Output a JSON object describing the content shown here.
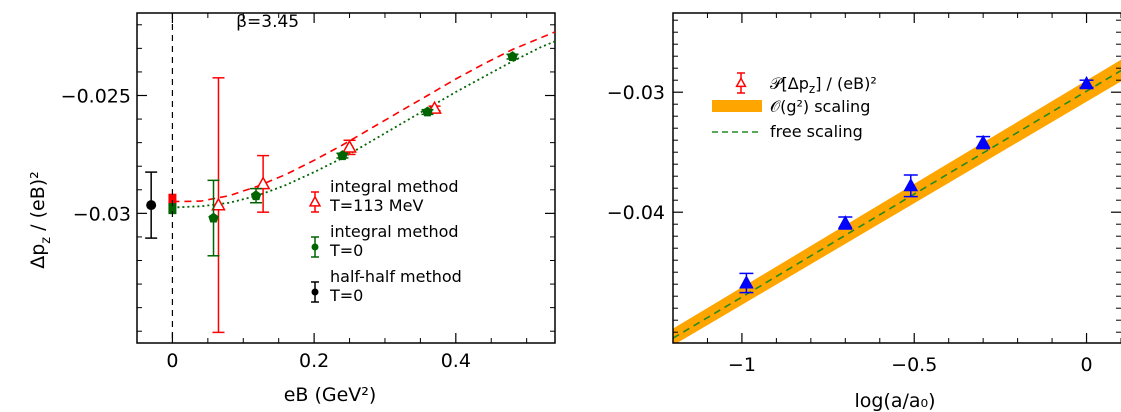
{
  "chart_data": [
    {
      "type": "scatter",
      "xlabel": "eB (GeV²)",
      "ylabel": "Δp_z / (eB)²",
      "xlim": [
        -0.05,
        0.54
      ],
      "ylim": [
        -0.0355,
        -0.0215
      ],
      "x_ticks": [
        0,
        0.2,
        0.4
      ],
      "x_tick_labels": [
        "0",
        "0.2",
        "0.4"
      ],
      "y_ticks": [
        -0.025,
        -0.03
      ],
      "y_tick_labels": [
        "−0.025",
        "−0.03"
      ],
      "annotation": "β=3.45",
      "annotation_x": 0.09,
      "annotation_y": -0.0221,
      "vline_x": 0,
      "series": [
        {
          "name": "integral method T=113 MeV",
          "legend_lines": [
            "integral method",
            "T=113 MeV"
          ],
          "color": "#ff0000",
          "marker": "triangle-open",
          "points": [
            {
              "x": 0.065,
              "y": -0.02965,
              "err": 0.0054
            },
            {
              "x": 0.128,
              "y": -0.02875,
              "err": 0.0012
            },
            {
              "x": 0.25,
              "y": -0.0272,
              "err": 0.0003
            },
            {
              "x": 0.37,
              "y": -0.02555,
              "err": 0.0001
            }
          ],
          "fit_curve": [
            [
              0,
              -0.0295
            ],
            [
              0.04,
              -0.02948
            ],
            [
              0.08,
              -0.02925
            ],
            [
              0.12,
              -0.02885
            ],
            [
              0.16,
              -0.02835
            ],
            [
              0.2,
              -0.02775
            ],
            [
              0.24,
              -0.0271
            ],
            [
              0.28,
              -0.0264
            ],
            [
              0.32,
              -0.0257
            ],
            [
              0.36,
              -0.025
            ],
            [
              0.4,
              -0.0243
            ],
            [
              0.44,
              -0.02365
            ],
            [
              0.48,
              -0.02305
            ],
            [
              0.52,
              -0.02255
            ],
            [
              0.54,
              -0.0223
            ]
          ],
          "zero_point": {
            "x": 0.0,
            "y": -0.0294
          }
        },
        {
          "name": "integral method T=0",
          "legend_lines": [
            "integral method",
            "T=0"
          ],
          "color": "#006400",
          "marker": "pentagon-filled",
          "points": [
            {
              "x": 0.058,
              "y": -0.0302,
              "err": 0.0016
            },
            {
              "x": 0.118,
              "y": -0.02925,
              "err": 0.0003
            },
            {
              "x": 0.24,
              "y": -0.02755,
              "err": 0.0001
            },
            {
              "x": 0.36,
              "y": -0.0257,
              "err": 0.0001
            },
            {
              "x": 0.48,
              "y": -0.02335,
              "err": 0.0001
            }
          ],
          "fit_curve": [
            [
              0,
              -0.02975
            ],
            [
              0.04,
              -0.0297
            ],
            [
              0.08,
              -0.02955
            ],
            [
              0.12,
              -0.02925
            ],
            [
              0.16,
              -0.0288
            ],
            [
              0.2,
              -0.02825
            ],
            [
              0.24,
              -0.02765
            ],
            [
              0.28,
              -0.02695
            ],
            [
              0.32,
              -0.02625
            ],
            [
              0.36,
              -0.02555
            ],
            [
              0.4,
              -0.02485
            ],
            [
              0.44,
              -0.0242
            ],
            [
              0.48,
              -0.02355
            ],
            [
              0.52,
              -0.02295
            ],
            [
              0.54,
              -0.0227
            ]
          ],
          "zero_point": {
            "x": 0.0,
            "y": -0.0298
          }
        },
        {
          "name": "half-half method T=0",
          "legend_lines": [
            "half-half method",
            "T=0"
          ],
          "color": "#000000",
          "marker": "circle-filled",
          "points": [
            {
              "x": -0.03,
              "y": -0.02965,
              "err": 0.0014
            }
          ]
        }
      ]
    },
    {
      "type": "line",
      "xlabel": "log(a/a₀)",
      "ylabel": "",
      "xlim": [
        -1.2,
        0.1
      ],
      "ylim": [
        -0.0509,
        -0.0234
      ],
      "x_ticks": [
        -1,
        -0.5,
        0
      ],
      "x_tick_labels": [
        "−1",
        "−0.5",
        "0"
      ],
      "y_ticks": [
        -0.03,
        -0.04
      ],
      "y_tick_labels": [
        "−0.03",
        "−0.04"
      ],
      "series": [
        {
          "name": "𝒫[Δp_z] / (eB)²",
          "legend_label_main": "𝒫[Δp",
          "legend_label_sub": "z",
          "legend_label_end": "] / (eB)²",
          "color": "#0000ff",
          "legend_marker_color": "#ff0000",
          "marker": "triangle-filled",
          "points": [
            {
              "x": -0.987,
              "y": -0.0459,
              "err": 0.0008
            },
            {
              "x": -0.7,
              "y": -0.0409,
              "err": 0.0005
            },
            {
              "x": -0.51,
              "y": -0.0378,
              "err": 0.0009
            },
            {
              "x": -0.3,
              "y": -0.0342,
              "err": 0.0005
            },
            {
              "x": 0.0,
              "y": -0.0293,
              "err": 0.0003
            }
          ]
        },
        {
          "name": "𝒪(g²) scaling",
          "color": "#ffa500",
          "band_lower": [
            [
              -1.2,
              -0.0511
            ],
            [
              0.1,
              -0.0291
            ]
          ],
          "band_upper": [
            [
              -1.2,
              -0.0497
            ],
            [
              0.1,
              -0.0273
            ]
          ]
        },
        {
          "name": "free scaling",
          "color": "#228b22",
          "line": [
            [
              -1.2,
              -0.0505
            ],
            [
              0.1,
              -0.0282
            ]
          ]
        }
      ]
    }
  ]
}
